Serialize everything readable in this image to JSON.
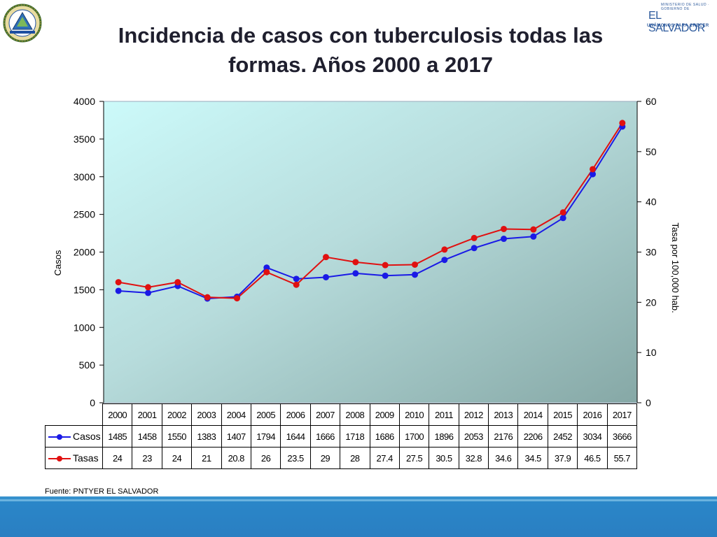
{
  "slide": {
    "title": "Incidencia de casos con tuberculosis todas las formas. Años 2000 a 2017",
    "source": "Fuente: PNTYER EL SALVADOR",
    "logo_right_small": "MINISTERIO DE SALUD · GOBIERNO DE",
    "logo_right_main": "EL SALVADOR",
    "logo_right_slogan": "UNÁMONOS PARA CRECER"
  },
  "colors": {
    "casos": "#1a1ae6",
    "tasas": "#e01010",
    "plot_top": "#ccfafa",
    "plot_bottom": "#86a8a6",
    "footer": "#2a82c5"
  },
  "chart_data": {
    "type": "line",
    "title": "Incidencia de casos con tuberculosis todas las formas. Años 2000 a 2017",
    "categories": [
      "2000",
      "2001",
      "2002",
      "2003",
      "2004",
      "2005",
      "2006",
      "2007",
      "2008",
      "2009",
      "2010",
      "2011",
      "2012",
      "2013",
      "2014",
      "2015",
      "2016",
      "2017"
    ],
    "series": [
      {
        "name": "Casos",
        "axis": "left",
        "values": [
          1485,
          1458,
          1550,
          1383,
          1407,
          1794,
          1644,
          1666,
          1718,
          1686,
          1700,
          1896,
          2053,
          2176,
          2206,
          2452,
          3034,
          3666
        ]
      },
      {
        "name": "Tasas",
        "axis": "right",
        "values": [
          24,
          23,
          24,
          21,
          20.8,
          26,
          23.5,
          29,
          28,
          27.4,
          27.5,
          30.5,
          32.8,
          34.6,
          34.5,
          37.9,
          46.5,
          55.7
        ]
      }
    ],
    "ylabel": "Casos",
    "y2label": "Tasa por 100,000 hab.",
    "ylim": [
      0,
      4000
    ],
    "y2lim": [
      0,
      60
    ],
    "yticks": [
      "0",
      "500",
      "1000",
      "1500",
      "2000",
      "2500",
      "3000",
      "3500",
      "4000"
    ],
    "y2ticks": [
      "0",
      "10",
      "20",
      "30",
      "40",
      "50",
      "60"
    ],
    "grid": false,
    "legend": "data-table-below"
  }
}
